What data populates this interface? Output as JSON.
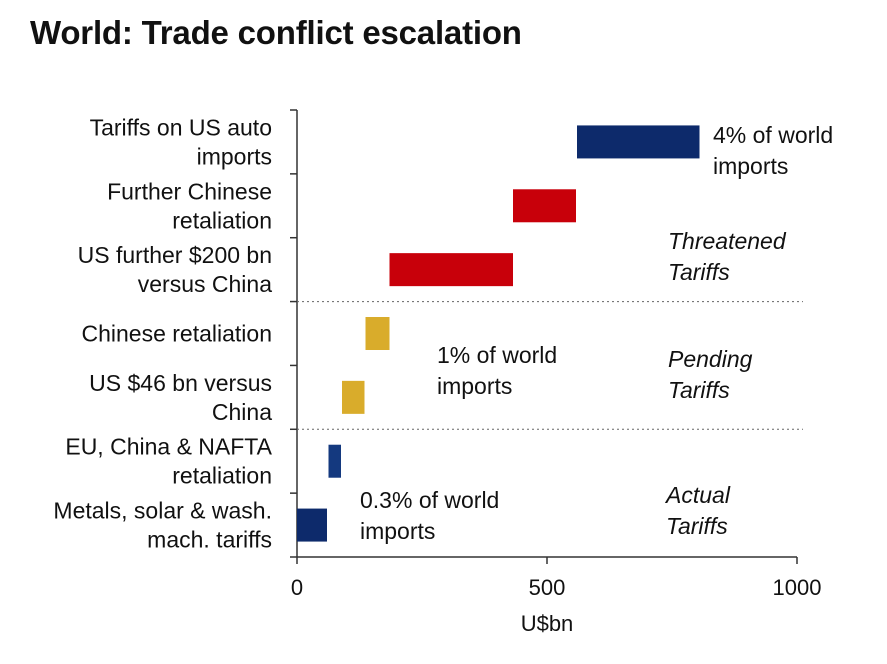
{
  "chart_data": {
    "type": "bar",
    "orientation": "horizontal",
    "subtype": "waterfall",
    "title": "World: Trade conflict escalation",
    "xlabel": "U$bn",
    "ylabel": "",
    "xlim": [
      0,
      1000
    ],
    "xticks": [
      0,
      500,
      1000
    ],
    "categories": [
      [
        "Tariffs on US auto",
        "imports"
      ],
      [
        "Further Chinese",
        "retaliation"
      ],
      [
        "US further $200 bn",
        "versus China"
      ],
      [
        "Chinese retaliation"
      ],
      [
        "US $46 bn versus",
        "China"
      ],
      [
        "EU, China & NAFTA",
        "retaliation"
      ],
      [
        "Metals, solar & wash.",
        "mach. tariffs"
      ]
    ],
    "bars": [
      {
        "start": 560,
        "end": 805,
        "color": "#0d2a6b"
      },
      {
        "start": 432,
        "end": 558,
        "color": "#c8000a"
      },
      {
        "start": 185,
        "end": 432,
        "color": "#c8000a"
      },
      {
        "start": 137,
        "end": 185,
        "color": "#d9ac2b"
      },
      {
        "start": 90,
        "end": 135,
        "color": "#d9ac2b"
      },
      {
        "start": 63,
        "end": 88,
        "color": "#14397f"
      },
      {
        "start": 0,
        "end": 60,
        "color": "#0d2a6b"
      }
    ],
    "separators_after_index": [
      2,
      4
    ],
    "annotations": [
      [
        "4% of world",
        "imports"
      ],
      [
        "1% of world",
        "imports"
      ],
      [
        "0.3% of world",
        "imports"
      ]
    ],
    "group_labels": [
      [
        "Threatened",
        "Tariffs"
      ],
      [
        "Pending",
        "Tariffs"
      ],
      [
        "Actual",
        "Tariffs"
      ]
    ],
    "grid": false,
    "legend": "none"
  }
}
